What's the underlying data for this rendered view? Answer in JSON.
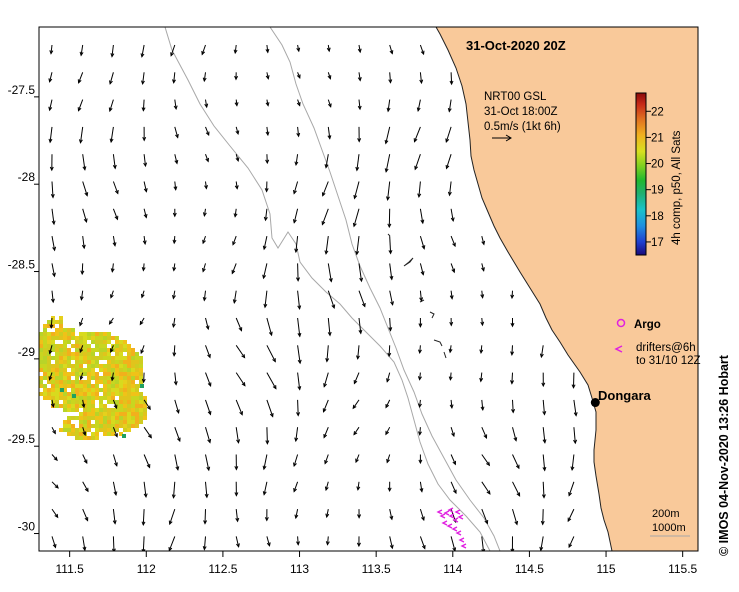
{
  "title": "31-Oct-2020 20Z",
  "product": {
    "line1": "NRT00 GSL",
    "line2": "31-Oct 18:00Z",
    "scale_text": "0.5m/s (1kt 6h)"
  },
  "colorbar": {
    "label": "4h comp, p50, All Sats",
    "min": 16.5,
    "max": 22.7,
    "ticks": [
      17,
      18,
      19,
      20,
      21,
      22
    ],
    "tick_labels": [
      "17",
      "18",
      "19",
      "20",
      "21",
      "22"
    ]
  },
  "legend": {
    "argo_label": "Argo",
    "drifters_line1": "drifters@6h",
    "drifters_line2": "to 31/10 12Z"
  },
  "place": {
    "name": "Dongara",
    "lon": 114.93,
    "lat": -29.25
  },
  "isobaths": {
    "label1": "200m",
    "label2": "1000m"
  },
  "credit": "© IMOS 04-Nov-2020 13:26 Hobart",
  "colors": {
    "land": "#f9c99a",
    "isobath": "#a8a8a8",
    "argo": "#e020e0",
    "dongara_dot": "#000000"
  },
  "axes": {
    "xlim": [
      111.3,
      115.6
    ],
    "ylim": [
      -30.1,
      -27.1
    ],
    "xticks": [
      111.5,
      112,
      112.5,
      113,
      113.5,
      114,
      114.5,
      115,
      115.5
    ],
    "xtick_labels": [
      "111.5",
      "112",
      "112.5",
      "113",
      "113.5",
      "114",
      "114.5",
      "115",
      "115.5"
    ],
    "yticks": [
      -27.5,
      -28,
      -28.5,
      -29,
      -29.5,
      -30
    ],
    "ytick_labels": [
      "-27.5",
      "-28",
      "-28.5",
      "-29",
      "-29.5",
      "-30"
    ]
  }
}
